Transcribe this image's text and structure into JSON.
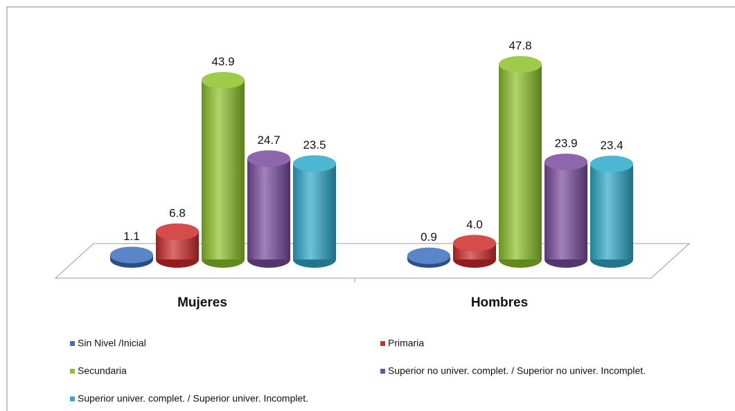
{
  "chart_data": {
    "type": "bar3d",
    "categories": [
      "Mujeres",
      "Hombres"
    ],
    "series": [
      {
        "name": "Sin Nivel /Inicial",
        "color": "#3d6fc0",
        "values": [
          1.1,
          0.9
        ],
        "value_labels": [
          "1.1",
          "0.9"
        ]
      },
      {
        "name": "Primaria",
        "color": "#cf2b2b",
        "values": [
          6.8,
          4.0
        ],
        "value_labels": [
          "6.8",
          "4.0"
        ]
      },
      {
        "name": "Secundaria",
        "color": "#8dc22a",
        "values": [
          43.9,
          47.8
        ],
        "value_labels": [
          "43.9",
          "47.8"
        ]
      },
      {
        "name": "Superior no univer. complet. / Superior no univer. Incomplet.",
        "color": "#7a4b9f",
        "values": [
          24.7,
          23.9
        ],
        "value_labels": [
          "24.7",
          "23.9"
        ]
      },
      {
        "name": "Superior univer. complet. / Superior univer. Incomplet.",
        "color": "#2ea9ca",
        "values": [
          23.5,
          23.4
        ],
        "value_labels": [
          "23.5",
          "23.4"
        ]
      }
    ]
  }
}
